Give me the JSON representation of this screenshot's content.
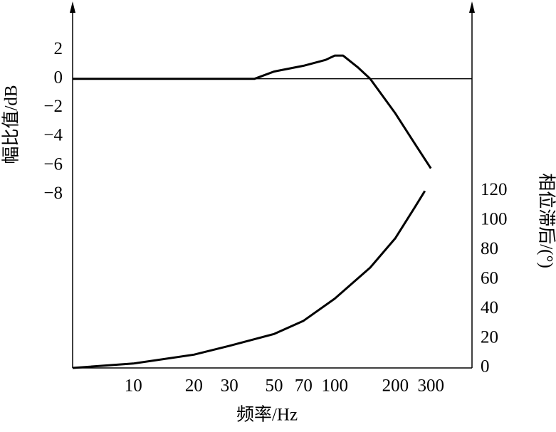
{
  "chart_data": {
    "type": "line",
    "x_label": "频率/Hz",
    "y_label": "幅比值/dB",
    "y2_label": "相位滞后/(°)",
    "xscale": "log",
    "xlim": [
      5,
      480
    ],
    "xticks": [
      10,
      20,
      30,
      50,
      70,
      100,
      200,
      300
    ],
    "ylim": [
      -20,
      5.2
    ],
    "yticks": [
      2,
      0,
      {
        "value": -2,
        "label": "−2"
      },
      {
        "value": -4,
        "label": "−4"
      },
      {
        "value": -6,
        "label": "−6"
      },
      {
        "value": -8,
        "label": "−8"
      }
    ],
    "y2lim": [
      0,
      247
    ],
    "y2ticks": [
      0,
      20,
      40,
      60,
      80,
      100,
      120
    ],
    "zero_line": true,
    "color": "#000000",
    "series": [
      {
        "x": [
          5,
          20,
          40,
          50,
          70,
          90,
          100,
          110,
          130,
          150,
          200,
          250,
          300
        ],
        "values": [
          0,
          0,
          0,
          0.5,
          0.9,
          1.3,
          1.6,
          1.6,
          0.8,
          0,
          -2.4,
          -4.5,
          -6.2
        ],
        "color": "#000000"
      },
      {
        "x": [
          5,
          10,
          20,
          30,
          50,
          70,
          100,
          150,
          200,
          250,
          280
        ],
        "values": [
          0,
          3,
          9,
          15,
          23,
          32,
          47,
          68,
          88,
          109,
          120
        ],
        "color": "#000000",
        "axis": "y2"
      }
    ]
  }
}
